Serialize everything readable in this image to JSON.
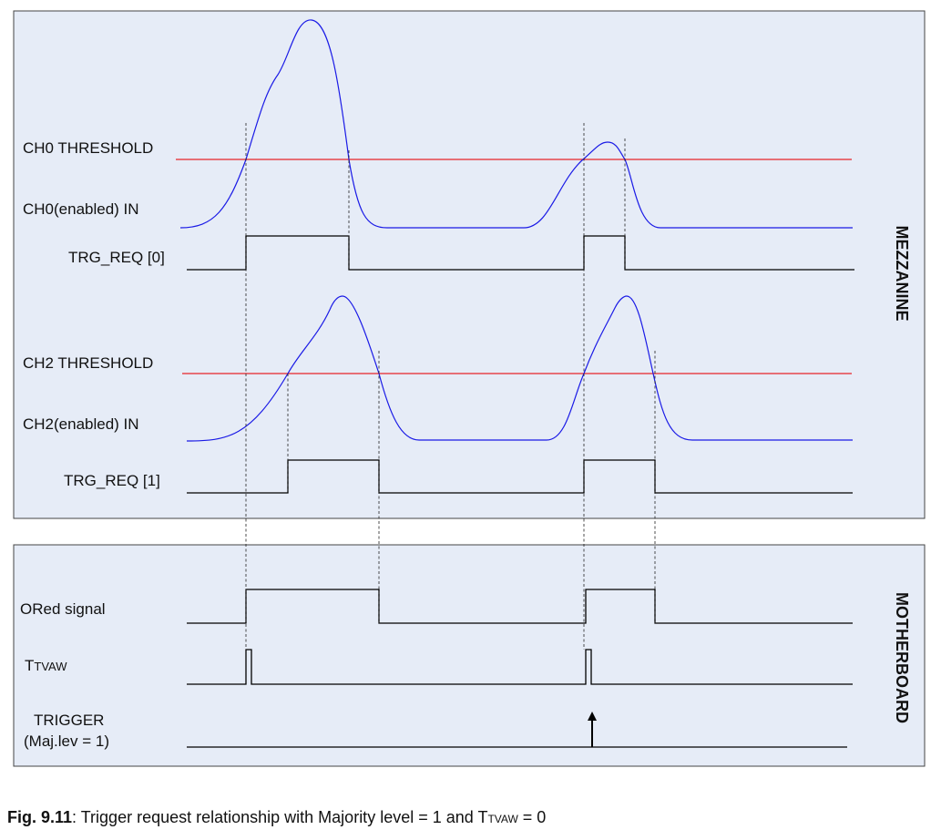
{
  "labels": {
    "ch0_threshold": "CH0 THRESHOLD",
    "ch0_in": "CH0(enabled) IN",
    "trg_req0": "TRG_REQ [0]",
    "ch2_threshold": "CH2 THRESHOLD",
    "ch2_in": "CH2(enabled) IN",
    "trg_req1": "TRG_REQ [1]",
    "ored": "ORed signal",
    "ttvaw_t": "T",
    "ttvaw_sub": "TVAW",
    "trigger": "TRIGGER",
    "majlev": "(Maj.lev = 1)"
  },
  "panels": {
    "mezzanine": "MEZZANINE",
    "motherboard": "MOTHERBOARD"
  },
  "caption": {
    "fig": "Fig. 9.11",
    "text_before": ": Trigger request relationship with Majority level = 1 and T",
    "sub": "TVAW",
    "text_after": " = 0"
  },
  "colors": {
    "panel_bg": "#e6ecf7",
    "threshold": "#e8242a",
    "analog": "#1a1ae6",
    "digital": "#000000"
  }
}
